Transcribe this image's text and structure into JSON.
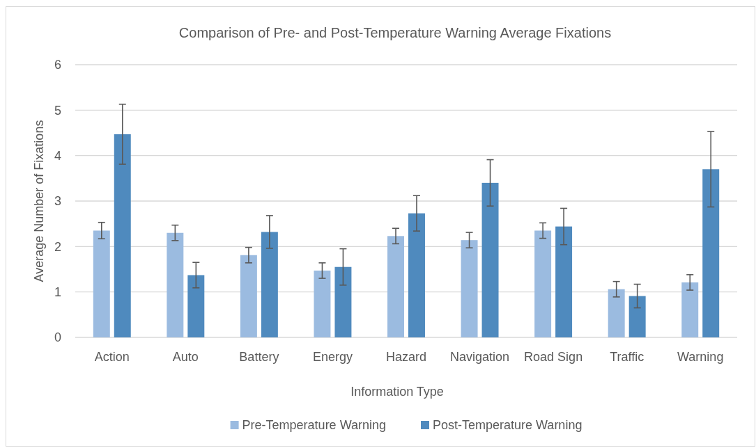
{
  "chart_data": {
    "type": "bar",
    "title": "Comparison of Pre- and Post-Temperature Warning Average Fixations",
    "xlabel": "Information Type",
    "ylabel": "Average Number of Fixations",
    "categories": [
      "Action",
      "Auto",
      "Battery",
      "Energy",
      "Hazard",
      "Navigation",
      "Road Sign",
      "Traffic",
      "Warning"
    ],
    "series": [
      {
        "name": "Pre-Temperature Warning",
        "color": "#9bbbe0",
        "values": [
          2.35,
          2.3,
          1.81,
          1.47,
          2.23,
          2.14,
          2.35,
          1.06,
          1.21
        ],
        "errors": [
          0.18,
          0.17,
          0.17,
          0.17,
          0.17,
          0.17,
          0.17,
          0.17,
          0.17
        ]
      },
      {
        "name": "Post-Temperature Warning",
        "color": "#4f8abe",
        "values": [
          4.47,
          1.37,
          2.32,
          1.55,
          2.73,
          3.4,
          2.44,
          0.91,
          3.7
        ],
        "errors": [
          0.66,
          0.28,
          0.36,
          0.4,
          0.39,
          0.51,
          0.4,
          0.26,
          0.83
        ]
      }
    ],
    "ylim": [
      0,
      6
    ],
    "yticks": [
      0,
      1,
      2,
      3,
      4,
      5,
      6
    ],
    "grid": "y",
    "legend": "bottom"
  }
}
